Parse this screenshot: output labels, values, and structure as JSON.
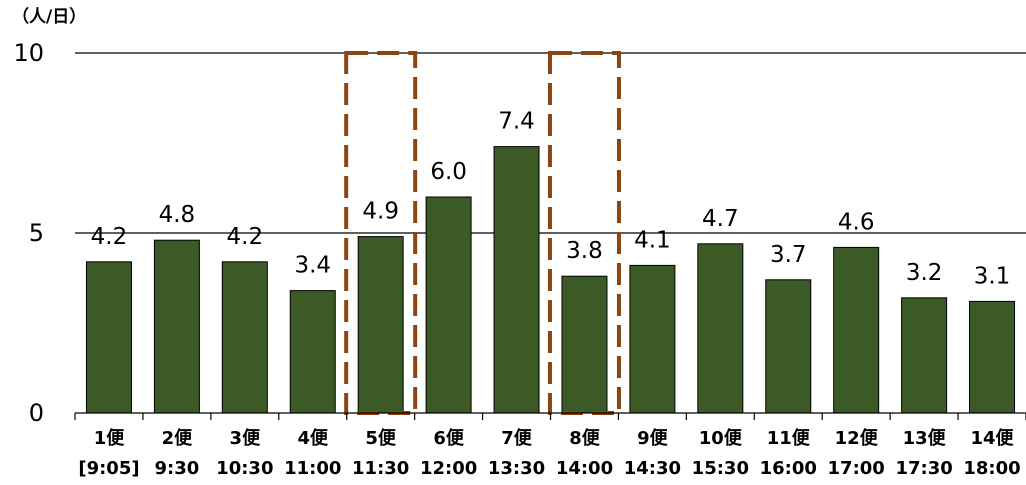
{
  "chart_data": {
    "type": "bar",
    "title": "",
    "ylabel": "（人/日）",
    "xlabel": "",
    "ylim": [
      0,
      10
    ],
    "yticks": [
      "0",
      "5",
      "10"
    ],
    "gridlines": [
      5,
      10
    ],
    "categories": [
      "1便",
      "2便",
      "3便",
      "4便",
      "5便",
      "6便",
      "7便",
      "8便",
      "9便",
      "10便",
      "11便",
      "12便",
      "13便",
      "14便"
    ],
    "times": [
      "[9:05]",
      "9:30",
      "10:30",
      "11:00",
      "11:30",
      "12:00",
      "13:30",
      "14:00",
      "14:30",
      "15:30",
      "16:00",
      "17:00",
      "17:30",
      "18:00"
    ],
    "values": [
      4.2,
      4.8,
      4.2,
      3.4,
      4.9,
      6.0,
      7.4,
      3.8,
      4.1,
      4.7,
      3.7,
      4.6,
      3.2,
      3.1
    ],
    "value_labels": [
      "4.2",
      "4.8",
      "4.2",
      "3.4",
      "4.9",
      "6.0",
      "7.4",
      "3.8",
      "4.1",
      "4.7",
      "3.7",
      "4.6",
      "3.2",
      "3.1"
    ],
    "highlighted_indices": [
      4,
      7
    ],
    "colors": {
      "bar": "#3b5a26",
      "bar_edge": "#000000",
      "highlight_box": "#8b4513",
      "grid": "#000000"
    }
  }
}
